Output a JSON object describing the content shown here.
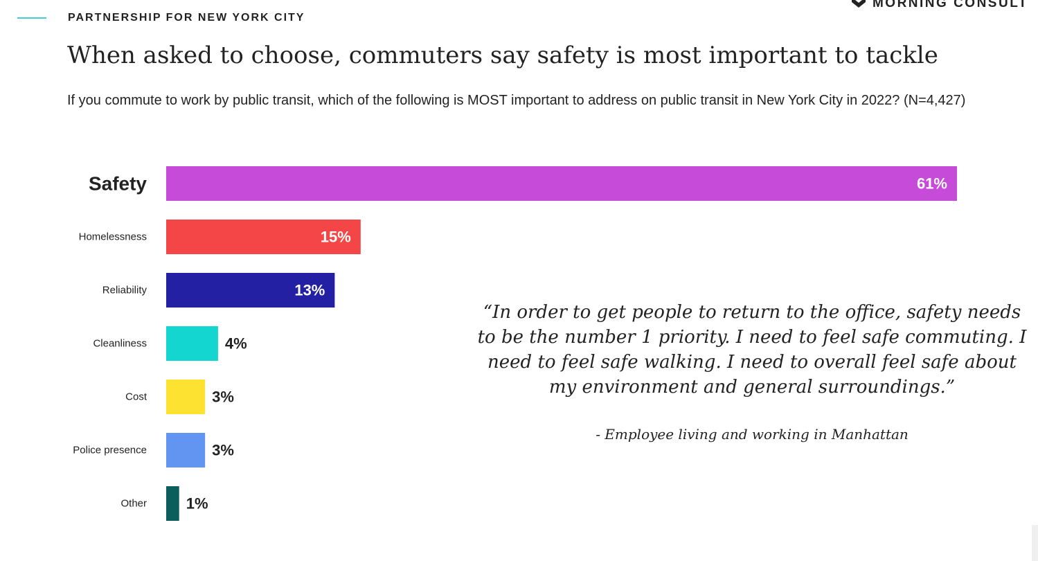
{
  "header": {
    "org": "PARTNERSHIP FOR NEW YORK CITY",
    "logo_text": "MORNING CONSULT",
    "logo_icon": "morning-consult-chevron-icon"
  },
  "chart_data": {
    "type": "bar",
    "orientation": "horizontal",
    "title": "When asked to choose, commuters say safety is most important to tackle",
    "subtitle": "If you commute to work by public transit, which of the following is MOST important to address on public transit in New York City in 2022? (N=4,427)",
    "categories": [
      "Safety",
      "Homelessness",
      "Reliability",
      "Cleanliness",
      "Cost",
      "Police presence",
      "Other"
    ],
    "values": [
      61,
      15,
      13,
      4,
      3,
      3,
      1
    ],
    "value_labels": [
      "61%",
      "15%",
      "13%",
      "4%",
      "3%",
      "3%",
      "1%"
    ],
    "colors": [
      "#c54bd8",
      "#f44646",
      "#2320a4",
      "#12d6cf",
      "#fde232",
      "#6294f2",
      "#0b5e5c"
    ],
    "xlim": [
      0,
      61
    ],
    "grid": false,
    "legend": "none"
  },
  "quote": {
    "text": "“In order to get people to return to the office, safety needs to be the number 1 priority. I need to feel safe commuting. I need to feel safe walking. I need to overall feel safe about my environment and general surroundings.”",
    "attribution": "- Employee living and working in Manhattan"
  }
}
